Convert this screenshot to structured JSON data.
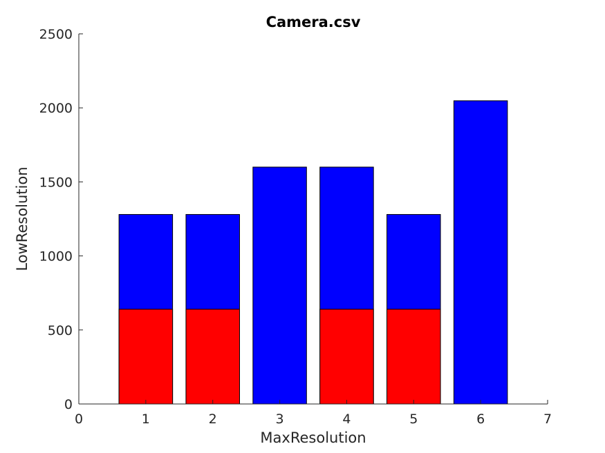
{
  "chart_data": {
    "type": "bar",
    "title": "Camera.csv",
    "xlabel": "MaxResolution",
    "ylabel": "LowResolution",
    "xlim": [
      0,
      7
    ],
    "ylim": [
      0,
      2500
    ],
    "x_ticks": [
      0,
      1,
      2,
      3,
      4,
      5,
      6,
      7
    ],
    "y_ticks": [
      0,
      500,
      1000,
      1500,
      2000,
      2500
    ],
    "x": [
      1,
      2,
      3,
      4,
      5,
      6
    ],
    "bar_width": 0.8,
    "grid": false,
    "series": [
      {
        "values": [
          1280,
          1280,
          1600,
          1600,
          1280,
          2048
        ],
        "color": "#0000ff"
      },
      {
        "values": [
          640,
          640,
          0,
          640,
          640,
          0
        ],
        "color": "#ff0000"
      }
    ]
  }
}
